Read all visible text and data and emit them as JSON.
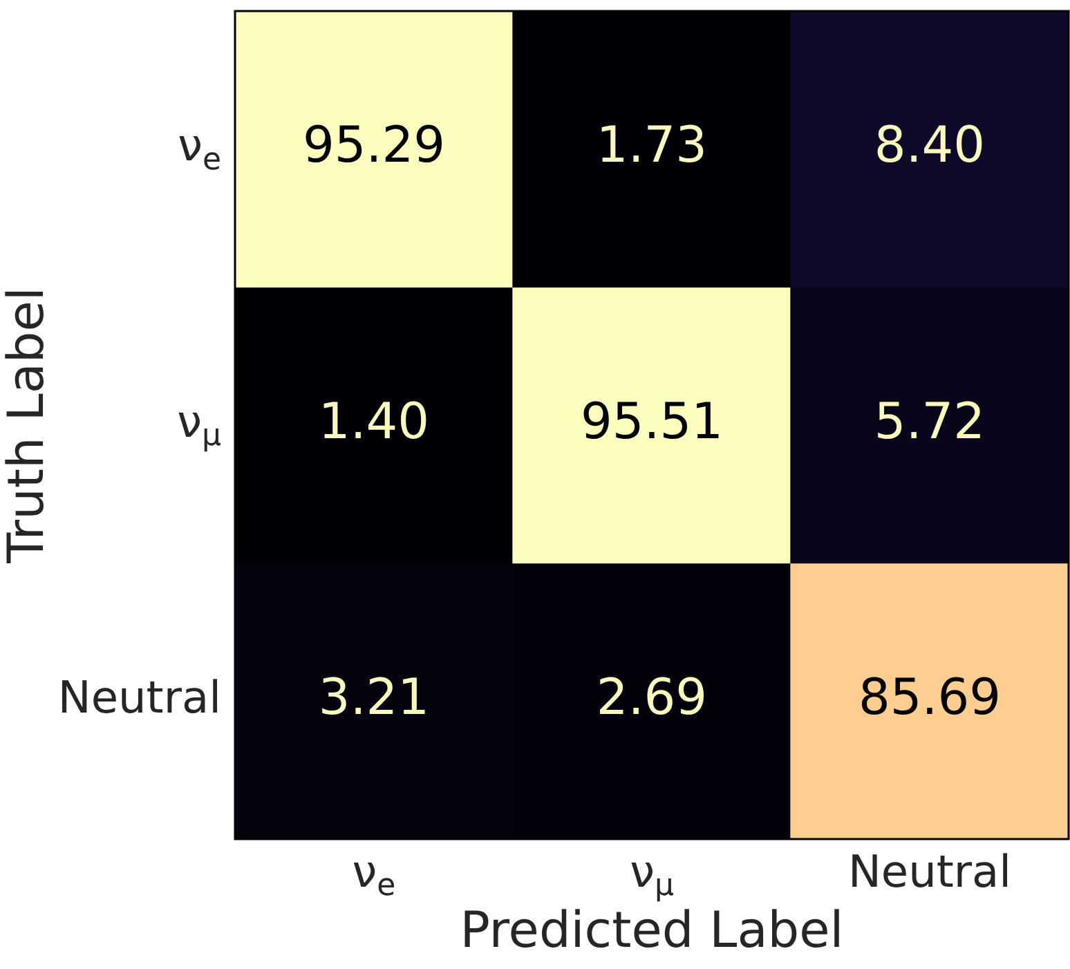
{
  "chart_data": {
    "type": "heatmap",
    "xlabel": "Predicted Label",
    "ylabel": "Truth Label",
    "categories": [
      "ν$_{e}$",
      "ν$_{μ}$",
      "Neutral"
    ],
    "y_categories": [
      "ν$_{e}$",
      "ν$_{μ}$",
      "Neutral"
    ],
    "cells": [
      [
        95.29,
        1.73,
        8.4
      ],
      [
        1.4,
        95.51,
        5.72
      ],
      [
        3.21,
        2.69,
        85.69
      ]
    ],
    "cell_labels": [
      [
        "95.29",
        "1.73",
        "8.40"
      ],
      [
        "1.40",
        "95.51",
        "5.72"
      ],
      [
        "3.21",
        "2.69",
        "85.69"
      ]
    ],
    "data_labels": true
  }
}
